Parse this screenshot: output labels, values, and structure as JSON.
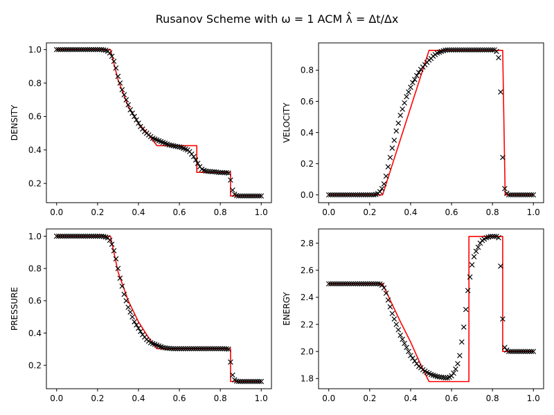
{
  "figure": {
    "title": "Rusanov Scheme with ω = 1 ACM λ̂ = Δt/Δx"
  },
  "chart_data": [
    {
      "type": "line",
      "ylabel": "DENSITY",
      "xlabel": "",
      "xlim": [
        -0.05,
        1.05
      ],
      "ylim": [
        0.085,
        1.04
      ],
      "xticks": [
        "0.0",
        "0.2",
        "0.4",
        "0.6",
        "0.8",
        "1.0"
      ],
      "yticks": [
        "0.2",
        "0.4",
        "0.6",
        "0.8",
        "1.0"
      ],
      "series": [
        {
          "role": "exact",
          "style": "line",
          "color": "#ff0000",
          "x": [
            0.0,
            0.263,
            0.3,
            0.35,
            0.4,
            0.45,
            0.49,
            0.685,
            0.685,
            0.85,
            0.85,
            1.0
          ],
          "y": [
            1.0,
            1.0,
            0.82,
            0.66,
            0.56,
            0.49,
            0.426,
            0.426,
            0.266,
            0.266,
            0.125,
            0.125
          ]
        },
        {
          "role": "numerical",
          "style": "markers",
          "color": "#000000",
          "x": [
            0.0,
            0.01,
            0.02,
            0.03,
            0.04,
            0.05,
            0.06,
            0.07,
            0.08,
            0.09,
            0.1,
            0.11,
            0.12,
            0.13,
            0.14,
            0.15,
            0.16,
            0.17,
            0.18,
            0.19,
            0.2,
            0.21,
            0.22,
            0.23,
            0.24,
            0.25,
            0.26,
            0.27,
            0.28,
            0.29,
            0.3,
            0.31,
            0.32,
            0.33,
            0.34,
            0.35,
            0.36,
            0.37,
            0.38,
            0.39,
            0.4,
            0.41,
            0.42,
            0.43,
            0.44,
            0.45,
            0.46,
            0.47,
            0.48,
            0.49,
            0.5,
            0.51,
            0.52,
            0.53,
            0.54,
            0.55,
            0.56,
            0.57,
            0.58,
            0.59,
            0.6,
            0.61,
            0.62,
            0.63,
            0.64,
            0.65,
            0.66,
            0.67,
            0.68,
            0.69,
            0.7,
            0.71,
            0.72,
            0.73,
            0.74,
            0.75,
            0.76,
            0.77,
            0.78,
            0.79,
            0.8,
            0.81,
            0.82,
            0.83,
            0.84,
            0.85,
            0.86,
            0.87,
            0.88,
            0.89,
            0.9,
            0.91,
            0.92,
            0.93,
            0.94,
            0.95,
            0.96,
            0.97,
            0.98,
            0.99,
            1.0
          ],
          "y": [
            1.0,
            1.0,
            1.0,
            1.0,
            1.0,
            1.0,
            1.0,
            1.0,
            1.0,
            1.0,
            1.0,
            1.0,
            1.0,
            1.0,
            1.0,
            1.0,
            1.0,
            1.0,
            1.0,
            1.0,
            1.0,
            1.0,
            1.0,
            0.998,
            0.996,
            0.99,
            0.98,
            0.96,
            0.93,
            0.89,
            0.84,
            0.8,
            0.76,
            0.73,
            0.7,
            0.67,
            0.64,
            0.62,
            0.6,
            0.58,
            0.56,
            0.54,
            0.525,
            0.51,
            0.5,
            0.49,
            0.48,
            0.47,
            0.465,
            0.46,
            0.455,
            0.45,
            0.445,
            0.44,
            0.435,
            0.43,
            0.428,
            0.425,
            0.422,
            0.42,
            0.418,
            0.415,
            0.41,
            0.405,
            0.4,
            0.39,
            0.375,
            0.36,
            0.34,
            0.32,
            0.3,
            0.285,
            0.278,
            0.274,
            0.272,
            0.271,
            0.27,
            0.27,
            0.268,
            0.266,
            0.265,
            0.265,
            0.264,
            0.264,
            0.262,
            0.22,
            0.16,
            0.135,
            0.127,
            0.125,
            0.125,
            0.125,
            0.125,
            0.125,
            0.125,
            0.125,
            0.125,
            0.125,
            0.125,
            0.125,
            0.125
          ]
        }
      ]
    },
    {
      "type": "line",
      "ylabel": "VELOCITY",
      "xlabel": "",
      "xlim": [
        -0.05,
        1.05
      ],
      "ylim": [
        -0.05,
        0.975
      ],
      "xticks": [
        "0.0",
        "0.2",
        "0.4",
        "0.6",
        "0.8",
        "1.0"
      ],
      "yticks": [
        "0.0",
        "0.2",
        "0.4",
        "0.6",
        "0.8"
      ],
      "series": [
        {
          "role": "exact",
          "style": "line",
          "color": "#ff0000",
          "x": [
            0.0,
            0.263,
            0.49,
            0.85,
            0.862,
            1.0
          ],
          "y": [
            0.0,
            0.0,
            0.927,
            0.927,
            0.0,
            0.0
          ]
        },
        {
          "role": "numerical",
          "style": "markers",
          "color": "#000000",
          "x": [
            0.0,
            0.01,
            0.02,
            0.03,
            0.04,
            0.05,
            0.06,
            0.07,
            0.08,
            0.09,
            0.1,
            0.11,
            0.12,
            0.13,
            0.14,
            0.15,
            0.16,
            0.17,
            0.18,
            0.19,
            0.2,
            0.21,
            0.22,
            0.23,
            0.24,
            0.25,
            0.26,
            0.27,
            0.28,
            0.29,
            0.3,
            0.31,
            0.32,
            0.33,
            0.34,
            0.35,
            0.36,
            0.37,
            0.38,
            0.39,
            0.4,
            0.41,
            0.42,
            0.43,
            0.44,
            0.45,
            0.46,
            0.47,
            0.48,
            0.49,
            0.5,
            0.51,
            0.52,
            0.53,
            0.54,
            0.55,
            0.56,
            0.57,
            0.58,
            0.59,
            0.6,
            0.61,
            0.62,
            0.63,
            0.64,
            0.65,
            0.66,
            0.67,
            0.68,
            0.69,
            0.7,
            0.71,
            0.72,
            0.73,
            0.74,
            0.75,
            0.76,
            0.77,
            0.78,
            0.79,
            0.8,
            0.81,
            0.82,
            0.83,
            0.84,
            0.85,
            0.86,
            0.87,
            0.88,
            0.89,
            0.9,
            0.91,
            0.92,
            0.93,
            0.94,
            0.95,
            0.96,
            0.97,
            0.98,
            0.99,
            1.0
          ],
          "y": [
            0.0,
            0.0,
            0.0,
            0.0,
            0.0,
            0.0,
            0.0,
            0.0,
            0.0,
            0.0,
            0.0,
            0.0,
            0.0,
            0.0,
            0.0,
            0.0,
            0.0,
            0.0,
            0.0,
            0.0,
            0.0,
            0.0,
            0.0,
            0.003,
            0.008,
            0.02,
            0.04,
            0.07,
            0.12,
            0.18,
            0.24,
            0.3,
            0.35,
            0.41,
            0.46,
            0.51,
            0.55,
            0.59,
            0.63,
            0.66,
            0.69,
            0.72,
            0.74,
            0.765,
            0.785,
            0.805,
            0.82,
            0.835,
            0.85,
            0.865,
            0.875,
            0.89,
            0.9,
            0.91,
            0.915,
            0.92,
            0.925,
            0.928,
            0.93,
            0.93,
            0.93,
            0.93,
            0.93,
            0.93,
            0.93,
            0.93,
            0.93,
            0.93,
            0.93,
            0.93,
            0.93,
            0.93,
            0.93,
            0.93,
            0.93,
            0.93,
            0.93,
            0.93,
            0.93,
            0.93,
            0.93,
            0.93,
            0.92,
            0.88,
            0.66,
            0.24,
            0.04,
            0.01,
            0.0,
            0.0,
            0.0,
            0.0,
            0.0,
            0.0,
            0.0,
            0.0,
            0.0,
            0.0,
            0.0,
            0.0,
            0.0
          ]
        }
      ]
    },
    {
      "type": "line",
      "ylabel": "PRESSURE",
      "xlabel": "",
      "xlim": [
        -0.05,
        1.05
      ],
      "ylim": [
        0.055,
        1.045
      ],
      "xticks": [
        "0.0",
        "0.2",
        "0.4",
        "0.6",
        "0.8",
        "1.0"
      ],
      "yticks": [
        "0.2",
        "0.4",
        "0.6",
        "0.8",
        "1.0"
      ],
      "series": [
        {
          "role": "exact",
          "style": "line",
          "color": "#ff0000",
          "x": [
            0.0,
            0.263,
            0.3,
            0.35,
            0.4,
            0.45,
            0.49,
            0.85,
            0.85,
            1.0
          ],
          "y": [
            1.0,
            1.0,
            0.78,
            0.6,
            0.47,
            0.37,
            0.303,
            0.303,
            0.1,
            0.1
          ]
        },
        {
          "role": "numerical",
          "style": "markers",
          "color": "#000000",
          "x": [
            0.0,
            0.01,
            0.02,
            0.03,
            0.04,
            0.05,
            0.06,
            0.07,
            0.08,
            0.09,
            0.1,
            0.11,
            0.12,
            0.13,
            0.14,
            0.15,
            0.16,
            0.17,
            0.18,
            0.19,
            0.2,
            0.21,
            0.22,
            0.23,
            0.24,
            0.25,
            0.26,
            0.27,
            0.28,
            0.29,
            0.3,
            0.31,
            0.32,
            0.33,
            0.34,
            0.35,
            0.36,
            0.37,
            0.38,
            0.39,
            0.4,
            0.41,
            0.42,
            0.43,
            0.44,
            0.45,
            0.46,
            0.47,
            0.48,
            0.49,
            0.5,
            0.51,
            0.52,
            0.53,
            0.54,
            0.55,
            0.56,
            0.57,
            0.58,
            0.59,
            0.6,
            0.61,
            0.62,
            0.63,
            0.64,
            0.65,
            0.66,
            0.67,
            0.68,
            0.69,
            0.7,
            0.71,
            0.72,
            0.73,
            0.74,
            0.75,
            0.76,
            0.77,
            0.78,
            0.79,
            0.8,
            0.81,
            0.82,
            0.83,
            0.84,
            0.85,
            0.86,
            0.87,
            0.88,
            0.89,
            0.9,
            0.91,
            0.92,
            0.93,
            0.94,
            0.95,
            0.96,
            0.97,
            0.98,
            0.99,
            1.0
          ],
          "y": [
            1.0,
            1.0,
            1.0,
            1.0,
            1.0,
            1.0,
            1.0,
            1.0,
            1.0,
            1.0,
            1.0,
            1.0,
            1.0,
            1.0,
            1.0,
            1.0,
            1.0,
            1.0,
            1.0,
            1.0,
            1.0,
            1.0,
            1.0,
            0.998,
            0.995,
            0.99,
            0.975,
            0.95,
            0.91,
            0.86,
            0.8,
            0.74,
            0.69,
            0.64,
            0.6,
            0.56,
            0.53,
            0.5,
            0.47,
            0.45,
            0.43,
            0.41,
            0.39,
            0.375,
            0.36,
            0.35,
            0.34,
            0.335,
            0.33,
            0.325,
            0.32,
            0.315,
            0.31,
            0.308,
            0.306,
            0.305,
            0.304,
            0.303,
            0.303,
            0.303,
            0.303,
            0.303,
            0.303,
            0.303,
            0.303,
            0.303,
            0.303,
            0.303,
            0.303,
            0.303,
            0.303,
            0.303,
            0.303,
            0.303,
            0.303,
            0.303,
            0.303,
            0.303,
            0.303,
            0.303,
            0.303,
            0.303,
            0.303,
            0.302,
            0.3,
            0.22,
            0.14,
            0.11,
            0.102,
            0.1,
            0.1,
            0.1,
            0.1,
            0.1,
            0.1,
            0.1,
            0.1,
            0.1,
            0.1,
            0.1,
            0.1
          ]
        }
      ]
    },
    {
      "type": "line",
      "ylabel": "ENERGY",
      "xlabel": "",
      "xlim": [
        -0.05,
        1.05
      ],
      "ylim": [
        1.725,
        2.905
      ],
      "xticks": [
        "0.0",
        "0.2",
        "0.4",
        "0.6",
        "0.8",
        "1.0"
      ],
      "yticks": [
        "1.8",
        "2.0",
        "2.2",
        "2.4",
        "2.6",
        "2.8"
      ],
      "series": [
        {
          "role": "exact",
          "style": "line",
          "color": "#ff0000",
          "x": [
            0.0,
            0.263,
            0.3,
            0.35,
            0.4,
            0.45,
            0.49,
            0.685,
            0.685,
            0.85,
            0.85,
            1.0
          ],
          "y": [
            2.5,
            2.5,
            2.38,
            2.22,
            2.07,
            1.9,
            1.778,
            1.778,
            2.85,
            2.85,
            2.0,
            2.0
          ]
        },
        {
          "role": "numerical",
          "style": "markers",
          "color": "#000000",
          "x": [
            0.0,
            0.01,
            0.02,
            0.03,
            0.04,
            0.05,
            0.06,
            0.07,
            0.08,
            0.09,
            0.1,
            0.11,
            0.12,
            0.13,
            0.14,
            0.15,
            0.16,
            0.17,
            0.18,
            0.19,
            0.2,
            0.21,
            0.22,
            0.23,
            0.24,
            0.25,
            0.26,
            0.27,
            0.28,
            0.29,
            0.3,
            0.31,
            0.32,
            0.33,
            0.34,
            0.35,
            0.36,
            0.37,
            0.38,
            0.39,
            0.4,
            0.41,
            0.42,
            0.43,
            0.44,
            0.45,
            0.46,
            0.47,
            0.48,
            0.49,
            0.5,
            0.51,
            0.52,
            0.53,
            0.54,
            0.55,
            0.56,
            0.57,
            0.58,
            0.59,
            0.6,
            0.61,
            0.62,
            0.63,
            0.64,
            0.65,
            0.66,
            0.67,
            0.68,
            0.69,
            0.7,
            0.71,
            0.72,
            0.73,
            0.74,
            0.75,
            0.76,
            0.77,
            0.78,
            0.79,
            0.8,
            0.81,
            0.82,
            0.83,
            0.84,
            0.85,
            0.86,
            0.87,
            0.88,
            0.89,
            0.9,
            0.91,
            0.92,
            0.93,
            0.94,
            0.95,
            0.96,
            0.97,
            0.98,
            0.99,
            1.0
          ],
          "y": [
            2.5,
            2.5,
            2.5,
            2.5,
            2.5,
            2.5,
            2.5,
            2.5,
            2.5,
            2.5,
            2.5,
            2.5,
            2.5,
            2.5,
            2.5,
            2.5,
            2.5,
            2.5,
            2.5,
            2.5,
            2.5,
            2.5,
            2.5,
            2.5,
            2.5,
            2.498,
            2.49,
            2.47,
            2.43,
            2.38,
            2.33,
            2.28,
            2.24,
            2.2,
            2.16,
            2.12,
            2.09,
            2.06,
            2.03,
            2.0,
            1.97,
            1.95,
            1.93,
            1.91,
            1.89,
            1.88,
            1.865,
            1.855,
            1.845,
            1.838,
            1.83,
            1.825,
            1.82,
            1.815,
            1.812,
            1.81,
            1.808,
            1.805,
            1.805,
            1.81,
            1.82,
            1.84,
            1.87,
            1.91,
            1.97,
            2.07,
            2.18,
            2.31,
            2.45,
            2.55,
            2.64,
            2.7,
            2.74,
            2.77,
            2.8,
            2.82,
            2.83,
            2.84,
            2.845,
            2.85,
            2.85,
            2.85,
            2.85,
            2.84,
            2.63,
            2.24,
            2.03,
            2.01,
            2.0,
            2.0,
            2.0,
            2.0,
            2.0,
            2.0,
            2.0,
            2.0,
            2.0,
            2.0,
            2.0,
            2.0,
            2.0
          ]
        }
      ]
    }
  ]
}
